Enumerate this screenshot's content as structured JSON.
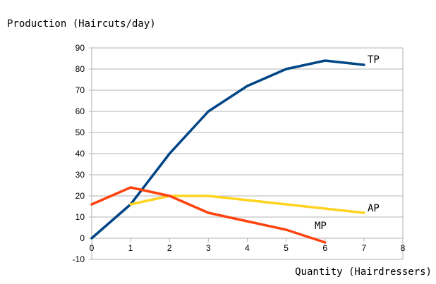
{
  "chart_data": {
    "type": "line",
    "title": "",
    "ylabel": "Production (Haircuts/day)",
    "xlabel": "Quantity (Hairdressers)",
    "xlim": [
      0,
      8
    ],
    "ylim": [
      -10,
      90
    ],
    "x_ticks": [
      "0",
      "1",
      "2",
      "3",
      "4",
      "5",
      "6",
      "7",
      "8"
    ],
    "y_ticks": [
      "90",
      "80",
      "70",
      "60",
      "50",
      "40",
      "30",
      "20",
      "10",
      "0",
      "-10"
    ],
    "grid": "horizontal",
    "legend": "inline labels at line ends",
    "series": [
      {
        "name": "TP",
        "color": "#004586",
        "x": [
          0,
          1,
          2,
          3,
          4,
          5,
          6,
          7
        ],
        "y": [
          0,
          16,
          40,
          60,
          72,
          80,
          84,
          82
        ]
      },
      {
        "name": "AP",
        "color": "#ffd320",
        "x": [
          1,
          2,
          3,
          4,
          5,
          6,
          7
        ],
        "y": [
          16,
          20,
          20,
          18,
          16,
          14,
          12
        ]
      },
      {
        "name": "MP",
        "color": "#ff420e",
        "x": [
          0,
          1,
          2,
          3,
          4,
          5,
          6
        ],
        "y": [
          16,
          24,
          20,
          12,
          8,
          4,
          -2
        ]
      }
    ]
  }
}
